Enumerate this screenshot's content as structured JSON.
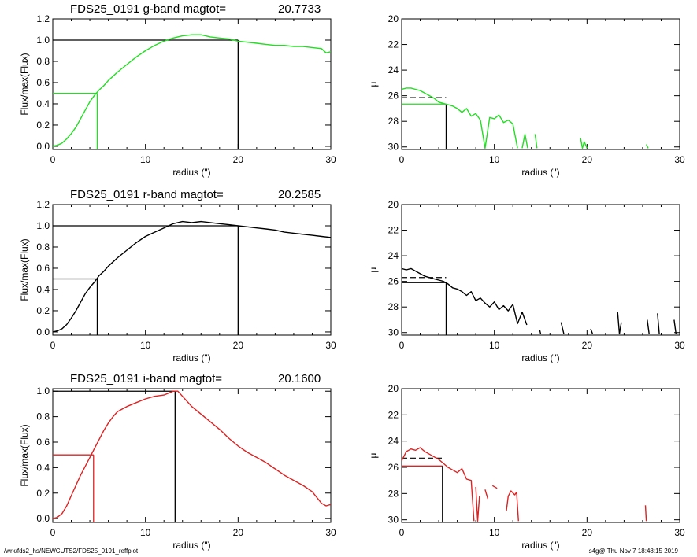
{
  "footer": {
    "left": "/wrk/fds2_hs/NEWCUTS2/FDS25_0191_reffplot",
    "right": "s4g@  Thu Nov  7 18:48:15 2019"
  },
  "chart_data": [
    {
      "type": "line",
      "panel": "g-flux",
      "title": "FDS25_0191 g-band  magtot=",
      "title_value": "20.7733",
      "xlabel": "radius (\")",
      "ylabel": "Flux/max(Flux)",
      "xlim": [
        0,
        30
      ],
      "ylim": [
        -0.03,
        1.2
      ],
      "x_ticks": [
        0,
        10,
        20,
        30
      ],
      "y_ticks": [
        0.0,
        0.2,
        0.4,
        0.6,
        0.8,
        1.0,
        1.2
      ],
      "color": "#22dd22",
      "series": [
        {
          "x": [
            0,
            0.5,
            1,
            1.5,
            2,
            2.5,
            3,
            3.5,
            4,
            4.5,
            5,
            5.5,
            6,
            7,
            8,
            9,
            10,
            11,
            12,
            13,
            14,
            15,
            16,
            17,
            18,
            19,
            20,
            21,
            22,
            23,
            24,
            25,
            26,
            27,
            28,
            29,
            29.5,
            30
          ],
          "y": [
            0.0,
            0.01,
            0.03,
            0.07,
            0.12,
            0.18,
            0.26,
            0.34,
            0.42,
            0.48,
            0.53,
            0.57,
            0.62,
            0.7,
            0.77,
            0.84,
            0.9,
            0.95,
            0.99,
            1.02,
            1.04,
            1.05,
            1.05,
            1.03,
            1.02,
            1.01,
            0.99,
            0.98,
            0.97,
            0.96,
            0.95,
            0.95,
            0.94,
            0.94,
            0.93,
            0.92,
            0.88,
            0.89
          ]
        }
      ],
      "guides": {
        "r_half": 4.8,
        "r_total": 20.0,
        "half_level": 0.5,
        "total_level": 1.0
      }
    },
    {
      "type": "line",
      "panel": "g-mu",
      "ylabel": "μ",
      "xlabel": "radius (\")",
      "xlim": [
        0,
        30
      ],
      "ylim": [
        30.2,
        20
      ],
      "x_ticks": [
        0,
        10,
        20,
        30
      ],
      "y_ticks": [
        20,
        22,
        24,
        26,
        28,
        30
      ],
      "color": "#22dd22",
      "series": [
        {
          "x": [
            0,
            0.5,
            1,
            1.5,
            2,
            2.5,
            3,
            3.5,
            4,
            4.5,
            5,
            5.5,
            6,
            6.5,
            7,
            7.5,
            8,
            8.5,
            9,
            9.5,
            10,
            10.5,
            11,
            11.5,
            12,
            12.5
          ],
          "y": [
            25.5,
            25.4,
            25.4,
            25.5,
            25.6,
            25.8,
            26.0,
            26.2,
            26.5,
            26.6,
            26.7,
            26.8,
            27.0,
            27.3,
            27.0,
            27.6,
            27.4,
            27.9,
            30.1,
            27.7,
            27.8,
            27.5,
            28.1,
            27.9,
            28.2,
            30.1
          ]
        },
        {
          "x": [
            13,
            13.3,
            13.6
          ],
          "y": [
            30.1,
            29.0,
            30.1
          ]
        },
        {
          "x": [
            14.4,
            14.6
          ],
          "y": [
            29.0,
            30.1
          ]
        },
        {
          "x": [
            19.3,
            19.5,
            19.7,
            20.0
          ],
          "y": [
            29.3,
            30.1,
            29.6,
            30.1
          ]
        },
        {
          "x": [
            26.4,
            26.6
          ],
          "y": [
            29.8,
            30.1
          ]
        }
      ],
      "guides": {
        "r_half": 4.8,
        "mu_solid": 26.65,
        "mu_dashed": 26.15
      }
    },
    {
      "type": "line",
      "panel": "r-flux",
      "title": "FDS25_0191 r-band  magtot=",
      "title_value": "20.2585",
      "xlabel": "radius (\")",
      "ylabel": "Flux/max(Flux)",
      "xlim": [
        0,
        30
      ],
      "ylim": [
        -0.03,
        1.2
      ],
      "x_ticks": [
        0,
        10,
        20,
        30
      ],
      "y_ticks": [
        0.0,
        0.2,
        0.4,
        0.6,
        0.8,
        1.0,
        1.2
      ],
      "color": "#000000",
      "series": [
        {
          "x": [
            0,
            0.5,
            1,
            1.5,
            2,
            2.5,
            3,
            3.5,
            4,
            4.5,
            5,
            5.5,
            6,
            7,
            8,
            9,
            10,
            11,
            12,
            13,
            14,
            15,
            16,
            17,
            18,
            19,
            20,
            21,
            22,
            23,
            24,
            25,
            26,
            27,
            28,
            29,
            30
          ],
          "y": [
            0.0,
            0.01,
            0.03,
            0.07,
            0.13,
            0.2,
            0.28,
            0.36,
            0.42,
            0.47,
            0.53,
            0.57,
            0.62,
            0.7,
            0.77,
            0.84,
            0.9,
            0.94,
            0.98,
            1.02,
            1.04,
            1.03,
            1.04,
            1.03,
            1.02,
            1.01,
            1.0,
            0.99,
            0.98,
            0.97,
            0.96,
            0.94,
            0.93,
            0.92,
            0.91,
            0.9,
            0.89
          ]
        }
      ],
      "guides": {
        "r_half": 4.8,
        "r_total": 20.0,
        "half_level": 0.5,
        "total_level": 1.0
      }
    },
    {
      "type": "line",
      "panel": "r-mu",
      "ylabel": "μ",
      "xlabel": "radius (\")",
      "xlim": [
        0,
        30
      ],
      "ylim": [
        30.2,
        20
      ],
      "x_ticks": [
        0,
        10,
        20,
        30
      ],
      "y_ticks": [
        20,
        22,
        24,
        26,
        28,
        30
      ],
      "color": "#000000",
      "series": [
        {
          "x": [
            0,
            0.5,
            1,
            1.5,
            2,
            2.5,
            3,
            3.5,
            4,
            4.5,
            5,
            5.5,
            6,
            6.5,
            7,
            7.5,
            8,
            8.5,
            9,
            9.5,
            10,
            10.5,
            11,
            11.5,
            12,
            12.5,
            13,
            13.5
          ],
          "y": [
            25.0,
            25.1,
            25.0,
            25.2,
            25.4,
            25.6,
            25.7,
            25.8,
            25.9,
            26.0,
            26.2,
            26.5,
            26.6,
            26.8,
            27.1,
            26.8,
            27.5,
            27.3,
            27.7,
            28.0,
            27.6,
            28.2,
            27.9,
            28.3,
            27.8,
            29.3,
            28.4,
            29.4
          ]
        },
        {
          "x": [
            14.9,
            15.0
          ],
          "y": [
            29.8,
            30.1
          ]
        },
        {
          "x": [
            17.2,
            17.5
          ],
          "y": [
            29.2,
            30.1
          ]
        },
        {
          "x": [
            20.4,
            20.6
          ],
          "y": [
            29.7,
            30.1
          ]
        },
        {
          "x": [
            23.3,
            23.5,
            23.7
          ],
          "y": [
            28.4,
            30.1,
            29.2
          ]
        },
        {
          "x": [
            26.5,
            26.7
          ],
          "y": [
            29.0,
            30.1
          ]
        },
        {
          "x": [
            27.6,
            27.8
          ],
          "y": [
            28.5,
            30.1
          ]
        },
        {
          "x": [
            29.4,
            29.6
          ],
          "y": [
            29.0,
            30.1
          ]
        }
      ],
      "guides": {
        "r_half": 4.8,
        "mu_solid": 26.1,
        "mu_dashed": 25.7
      }
    },
    {
      "type": "line",
      "panel": "i-flux",
      "title": "FDS25_0191 i-band  magtot=",
      "title_value": "20.1600",
      "xlabel": "radius (\")",
      "ylabel": "Flux/max(Flux)",
      "xlim": [
        0,
        30
      ],
      "ylim": [
        -0.03,
        1.02
      ],
      "x_ticks": [
        0,
        10,
        20,
        30
      ],
      "y_ticks": [
        0.0,
        0.2,
        0.4,
        0.6,
        0.8,
        1.0
      ],
      "color": "#dd2222",
      "series": [
        {
          "x": [
            0,
            0.5,
            1,
            1.5,
            2,
            2.5,
            3,
            3.5,
            4,
            4.5,
            5,
            5.5,
            6,
            6.5,
            7,
            7.5,
            8,
            9,
            10,
            11,
            12,
            13,
            13.5,
            14,
            15,
            16,
            17,
            18,
            19,
            20,
            21,
            22,
            23,
            24,
            25,
            26,
            27,
            28,
            29,
            29.5,
            30
          ],
          "y": [
            0.0,
            0.01,
            0.04,
            0.1,
            0.18,
            0.26,
            0.34,
            0.41,
            0.48,
            0.55,
            0.62,
            0.69,
            0.75,
            0.8,
            0.84,
            0.86,
            0.88,
            0.91,
            0.94,
            0.96,
            0.97,
            1.0,
            1.0,
            0.96,
            0.88,
            0.82,
            0.76,
            0.7,
            0.63,
            0.57,
            0.52,
            0.48,
            0.44,
            0.39,
            0.34,
            0.3,
            0.26,
            0.21,
            0.12,
            0.1,
            0.11
          ]
        }
      ],
      "guides": {
        "r_half": 4.4,
        "r_total": 13.2,
        "half_level": 0.5,
        "total_level": 1.0
      }
    },
    {
      "type": "line",
      "panel": "i-mu",
      "ylabel": "μ",
      "xlabel": "radius (\")",
      "xlim": [
        0,
        30
      ],
      "ylim": [
        30.2,
        20
      ],
      "x_ticks": [
        0,
        10,
        20,
        30
      ],
      "y_ticks": [
        20,
        22,
        24,
        26,
        28,
        30
      ],
      "color": "#dd2222",
      "series": [
        {
          "x": [
            0,
            0.5,
            1,
            1.5,
            2,
            2.5,
            3,
            3.5,
            4,
            4.5,
            5,
            5.5,
            6,
            6.5,
            7,
            7.5,
            7.8
          ],
          "y": [
            25.5,
            24.8,
            24.6,
            24.7,
            24.5,
            24.8,
            25.0,
            25.2,
            25.4,
            25.7,
            26.0,
            26.2,
            26.4,
            26.1,
            26.9,
            27.0,
            30.1
          ]
        },
        {
          "x": [
            8.0,
            8.2,
            8.4
          ],
          "y": [
            27.5,
            30.1,
            28.2
          ]
        },
        {
          "x": [
            9.0,
            9.3
          ],
          "y": [
            27.7,
            28.4
          ]
        },
        {
          "x": [
            9.8,
            10.3
          ],
          "y": [
            27.4,
            27.6
          ]
        },
        {
          "x": [
            11.3,
            11.5,
            11.8,
            12.2,
            12.4,
            12.6
          ],
          "y": [
            29.3,
            28.2,
            27.8,
            28.1,
            27.9,
            30.1
          ]
        },
        {
          "x": [
            26.3,
            26.4
          ],
          "y": [
            28.9,
            30.1
          ]
        }
      ],
      "guides": {
        "r_half": 4.4,
        "mu_solid": 25.9,
        "mu_dashed": 25.3
      }
    }
  ]
}
